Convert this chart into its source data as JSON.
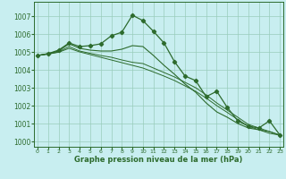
{
  "xlabel": "Graphe pression niveau de la mer (hPa)",
  "background_color": "#c8eef0",
  "grid_color": "#99ccbb",
  "line_color": "#2d6b2d",
  "hours": [
    0,
    1,
    2,
    3,
    4,
    5,
    6,
    7,
    8,
    9,
    10,
    11,
    12,
    13,
    14,
    15,
    16,
    17,
    18,
    19,
    20,
    21,
    22,
    23
  ],
  "series_main": [
    1004.8,
    1004.9,
    1005.1,
    1005.5,
    1005.3,
    1005.35,
    1005.45,
    1005.9,
    1006.1,
    1007.05,
    1006.75,
    1006.15,
    1005.5,
    1004.45,
    1003.65,
    1003.4,
    1002.5,
    1002.8,
    1001.9,
    1001.15,
    1000.85,
    1000.75,
    1001.15,
    1000.35
  ],
  "series_line2": [
    1004.8,
    1004.9,
    1005.05,
    1005.45,
    1005.2,
    1005.1,
    1005.05,
    1005.05,
    1005.15,
    1005.35,
    1005.3,
    1004.8,
    1004.25,
    1003.75,
    1003.2,
    1002.75,
    1002.15,
    1001.65,
    1001.35,
    1001.0,
    1000.75,
    1000.65,
    1000.55,
    1000.35
  ],
  "series_line3": [
    1004.8,
    1004.88,
    1005.0,
    1005.3,
    1005.05,
    1004.92,
    1004.8,
    1004.7,
    1004.55,
    1004.42,
    1004.35,
    1004.1,
    1003.85,
    1003.6,
    1003.3,
    1003.0,
    1002.6,
    1002.15,
    1001.75,
    1001.35,
    1000.95,
    1000.75,
    1000.55,
    1000.35
  ],
  "series_line4": [
    1004.8,
    1004.88,
    1004.98,
    1005.2,
    1005.0,
    1004.85,
    1004.7,
    1004.55,
    1004.4,
    1004.25,
    1004.1,
    1003.88,
    1003.65,
    1003.4,
    1003.1,
    1002.8,
    1002.42,
    1002.0,
    1001.62,
    1001.22,
    1000.85,
    1000.65,
    1000.45,
    1000.35
  ],
  "ylim": [
    999.7,
    1007.8
  ],
  "yticks": [
    1000,
    1001,
    1002,
    1003,
    1004,
    1005,
    1006,
    1007
  ],
  "xlim": [
    -0.3,
    23.3
  ]
}
